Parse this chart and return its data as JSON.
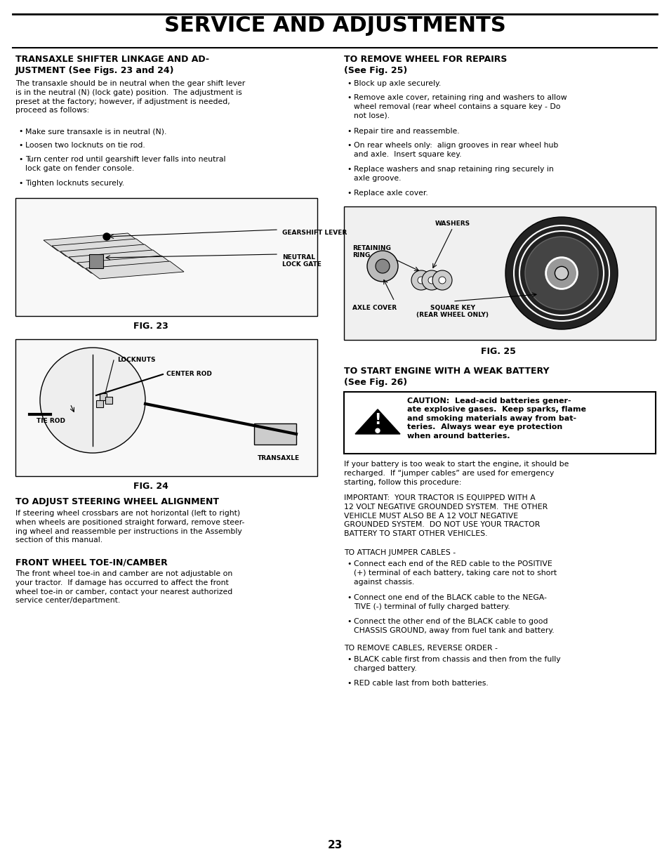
{
  "title": "SERVICE AND ADJUSTMENTS",
  "page_number": "23",
  "bg_color": "#ffffff",
  "section1_title_line1": "TRANSAXLE SHIFTER LINKAGE AND AD-",
  "section1_title_line2": "JUSTMENT (See Figs. 23 and 24)",
  "section1_body": "The transaxle should be in neutral when the gear shift lever\nis in the neutral (N) (lock gate) position.  The adjustment is\npreset at the factory; however, if adjustment is needed,\nproceed as follows:",
  "section1_bullets": [
    "Make sure transaxle is in neutral (N).",
    "Loosen two locknuts on tie rod.",
    "Turn center rod until gearshift lever falls into neutral\nlock gate on fender console.",
    "Tighten locknuts securely."
  ],
  "fig23_label": "FIG. 23",
  "fig24_label": "FIG. 24",
  "fig24_annotations": [
    "LOCKNUTS",
    "CENTER ROD",
    "TIE ROD",
    "TRANSAXLE"
  ],
  "section3_title": "TO ADJUST STEERING WHEEL ALIGNMENT",
  "section3_body": "If steering wheel crossbars are not horizontal (left to right)\nwhen wheels are positioned straight forward, remove steer-\ning wheel and reassemble per instructions in the Assembly\nsection of this manual.",
  "section4_title": "FRONT WHEEL TOE-IN/CAMBER",
  "section4_body": "The front wheel toe-in and camber are not adjustable on\nyour tractor.  If damage has occurred to affect the front\nwheel toe-in or camber, contact your nearest authorized\nservice center/department.",
  "section_r1_title_line1": "TO REMOVE WHEEL FOR REPAIRS",
  "section_r1_title_line2": "(See Fig. 25)",
  "section_r1_bullets": [
    "Block up axle securely.",
    "Remove axle cover, retaining ring and washers to allow\nwheel removal (rear wheel contains a square key - Do\nnot lose).",
    "Repair tire and reassemble.",
    "On rear wheels only:  align grooves in rear wheel hub\nand axle.  Insert square key.",
    "Replace washers and snap retaining ring securely in\naxle groove.",
    "Replace axle cover."
  ],
  "fig25_label": "FIG. 25",
  "section_r2_title_line1": "TO START ENGINE WITH A WEAK BATTERY",
  "section_r2_title_line2": "(See Fig. 26)",
  "caution_text": "CAUTION:  Lead-acid batteries gener-\nate explosive gases.  Keep sparks, flame\nand smoking materials away from bat-\nteries.  Always wear eye protection\nwhen around batteries.",
  "section_r2_body1_line1": "If your battery is too weak to start the engine, it should be",
  "section_r2_body1_line2": "recharged.  If “jumper cables” are used for emergency",
  "section_r2_body1_line3": "starting, follow this procedure:",
  "section_r2_important": "IMPORTANT:  YOUR TRACTOR IS EQUIPPED WITH A\n12 VOLT NEGATIVE GROUNDED SYSTEM.  THE OTHER\nVEHICLE MUST ALSO BE A 12 VOLT NEGATIVE\nGROUNDED SYSTEM.  DO NOT USE YOUR TRACTOR\nBATTERY TO START OTHER VEHICLES.",
  "section_r2_attach_label": "TO ATTACH JUMPER CABLES -",
  "section_r2_attach_bullets": [
    "Connect each end of the RED cable to the POSITIVE\n(+) terminal of each battery, taking care not to short\nagainst chassis.",
    "Connect one end of the BLACK cable to the NEGA-\nTIVE (-) terminal of fully charged battery.",
    "Connect the other end of the BLACK cable to good\nCHASSIS GROUND, away from fuel tank and battery."
  ],
  "section_r2_remove_label": "TO REMOVE CABLES, REVERSE ORDER -",
  "section_r2_remove_bullets": [
    "BLACK cable first from chassis and then from the fully\ncharged battery.",
    "RED cable last from both batteries."
  ]
}
